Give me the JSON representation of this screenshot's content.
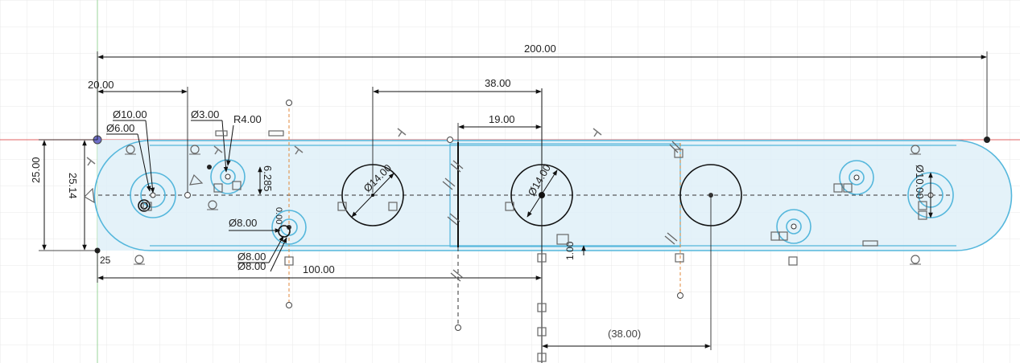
{
  "dimensions": {
    "overall_length": "200.00",
    "left_offset": "20.00",
    "dist_38": "38.00",
    "dist_19": "19.00",
    "dia_10_left": "Ø10.00",
    "dia_6_left": "Ø6.00",
    "dia_3": "Ø3.00",
    "radius_4": "R4.00",
    "height_25": "25.00",
    "height_25_14": "25.14",
    "offset_6_285": "6.285",
    "dia_14_a": "Ø14.00",
    "dia_14_b": "Ø14.00",
    "dia_8_a": "Ø8.00",
    "dia_8_b": "Ø8.00",
    "dia_8_c": "Ø8.00",
    "small_val_a": "0.00",
    "dist_100": "100.00",
    "label_25": "25",
    "small_1_00": "1.00",
    "dia_10_right": "Ø10.00",
    "ref_38": "(38.00)"
  },
  "colors": {
    "sketch_line": "#55b7dc",
    "profile_fill": "#dff0f8",
    "grid": "#e6e6e6",
    "construction_axis": "#e08a3c",
    "x_axis": "#e06060",
    "y_axis": "#7fcf7f",
    "dimension": "#111111"
  }
}
